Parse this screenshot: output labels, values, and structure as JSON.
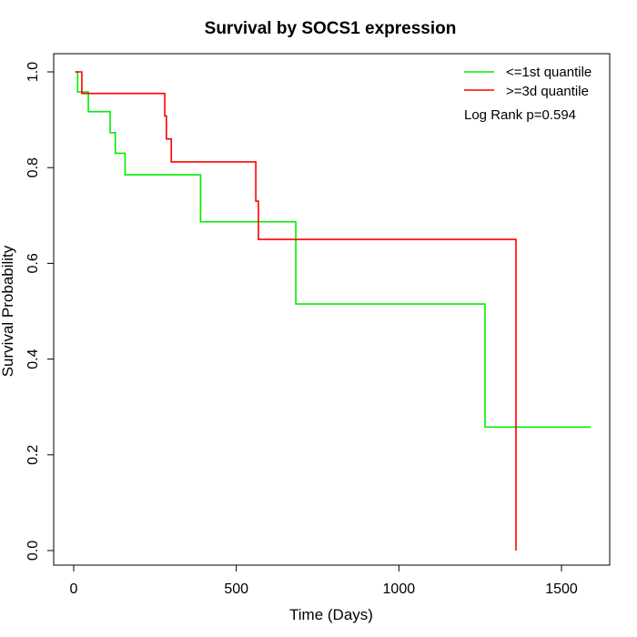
{
  "chart_data": {
    "type": "line",
    "step": true,
    "title": "Survival by SOCS1 expression",
    "xlabel": "Time (Days)",
    "ylabel": "Survival Probability",
    "xlim": [
      0,
      1600
    ],
    "ylim": [
      0,
      1
    ],
    "x_ticks": [
      0,
      500,
      1000,
      1500
    ],
    "y_ticks": [
      0.0,
      0.2,
      0.4,
      0.6,
      0.8,
      1.0
    ],
    "x_tick_labels": [
      "0",
      "500",
      "1000",
      "1500"
    ],
    "y_tick_labels": [
      "0.0",
      "0.2",
      "0.4",
      "0.6",
      "0.8",
      "1.0"
    ],
    "grid": false,
    "legend_position": "top-right",
    "annotation": "Log Rank p=0.594",
    "series": [
      {
        "name": "<=1st quantile",
        "color": "#00ee00",
        "x": [
          5,
          12,
          45,
          112,
          128,
          158,
          390,
          683,
          1265,
          1590
        ],
        "y": [
          1.0,
          0.958,
          0.917,
          0.873,
          0.83,
          0.785,
          0.687,
          0.515,
          0.258,
          0.258
        ]
      },
      {
        "name": ">=3d quantile",
        "color": "#ff0000",
        "x": [
          5,
          25,
          280,
          285,
          300,
          560,
          568,
          1360,
          1360
        ],
        "y": [
          1.0,
          0.955,
          0.908,
          0.86,
          0.812,
          0.73,
          0.65,
          0.65,
          0.0
        ]
      }
    ]
  }
}
